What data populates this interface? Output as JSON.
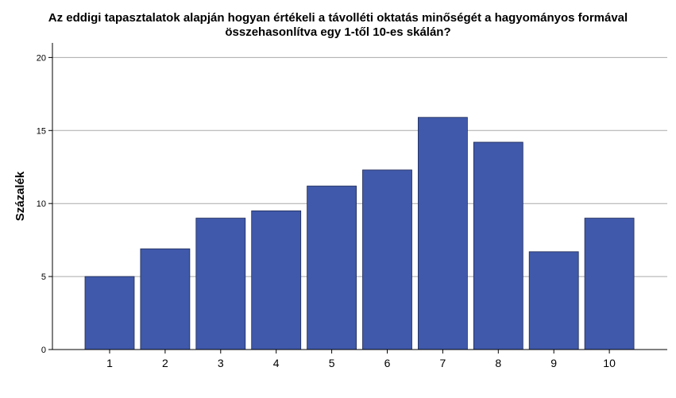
{
  "chart_data": {
    "type": "bar",
    "title_lines": [
      "Az eddigi tapasztalatok alapján hogyan értékeli a távolléti oktatás minőségét a hagyományos formával",
      "összehasonlítva egy 1-től 10-es skálán?"
    ],
    "xlabel": "",
    "ylabel": "Százalék",
    "categories": [
      "1",
      "2",
      "3",
      "4",
      "5",
      "6",
      "7",
      "8",
      "9",
      "10"
    ],
    "values": [
      5.0,
      6.9,
      9.0,
      9.5,
      11.2,
      12.3,
      15.9,
      14.2,
      6.7,
      9.0
    ],
    "ylim": [
      0,
      21
    ],
    "yticks": [
      "0",
      "5",
      "10",
      "15",
      "20"
    ],
    "grid": true,
    "bar_color": "#4059aa",
    "grid_color": "#aaaaaa"
  }
}
